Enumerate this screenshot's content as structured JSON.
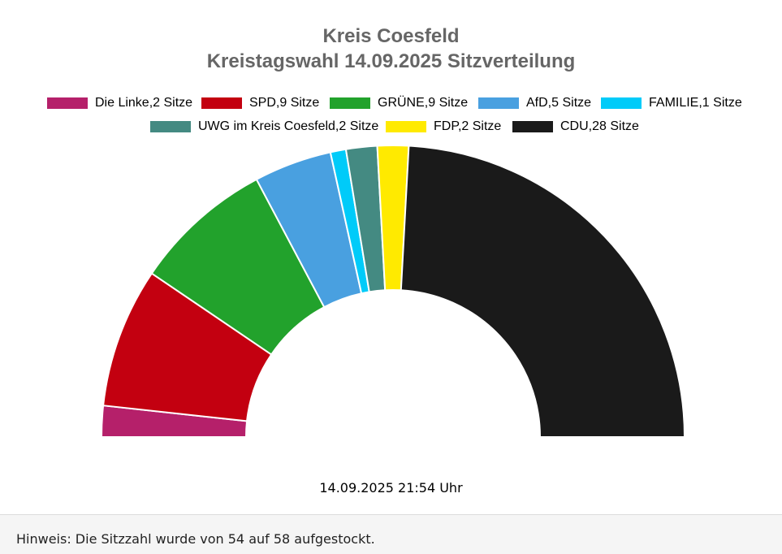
{
  "chart_data": {
    "type": "pie",
    "subtype": "parliament-semicircle",
    "title": "Kreis Coesfeld",
    "subtitle": "Kreistagswahl 14.09.2025 Sitzverteilung",
    "total_seats": 58,
    "categories": [
      "Die Linke",
      "SPD",
      "GRÜNE",
      "AfD",
      "FAMILIE",
      "UWG im Kreis Coesfeld",
      "FDP",
      "CDU"
    ],
    "values": [
      2,
      9,
      9,
      5,
      1,
      2,
      2,
      28
    ],
    "colors": [
      "#b5206a",
      "#c30010",
      "#22a22c",
      "#49a0e0",
      "#00cbf9",
      "#448a82",
      "#ffea00",
      "#1a1a1a"
    ],
    "legend": [
      {
        "label": "Die Linke,2 Sitze",
        "color": "#b5206a"
      },
      {
        "label": "SPD,9 Sitze",
        "color": "#c30010"
      },
      {
        "label": "GRÜNE,9 Sitze",
        "color": "#22a22c"
      },
      {
        "label": "AfD,5 Sitze",
        "color": "#49a0e0"
      },
      {
        "label": "FAMILIE,1 Sitze",
        "color": "#00cbf9"
      },
      {
        "label": "UWG im Kreis Coesfeld,2 Sitze",
        "color": "#448a82"
      },
      {
        "label": "FDP,2 Sitze",
        "color": "#ffea00"
      },
      {
        "label": "CDU,28 Sitze",
        "color": "#1a1a1a"
      }
    ],
    "legend_position": "top-center"
  },
  "timestamp": "14.09.2025 21:54 Uhr",
  "footer_note": "Hinweis: Die Sitzzahl wurde von 54 auf 58 aufgestockt."
}
